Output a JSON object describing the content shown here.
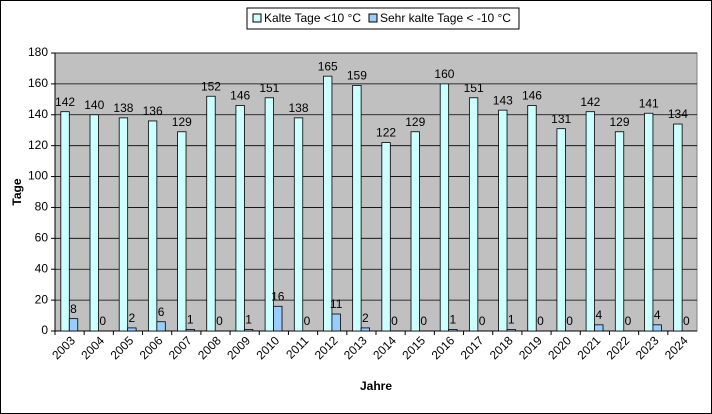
{
  "chart_data": {
    "type": "bar",
    "categories": [
      "2003",
      "2004",
      "2005",
      "2006",
      "2007",
      "2008",
      "2009",
      "2010",
      "2011",
      "2012",
      "2013",
      "2014",
      "2015",
      "2016",
      "2017",
      "2018",
      "2019",
      "2020",
      "2021",
      "2022",
      "2023",
      "2024"
    ],
    "series": [
      {
        "name": "Kalte Tage <10 °C",
        "color": "#ccffff",
        "values": [
          142,
          140,
          138,
          136,
          129,
          152,
          146,
          151,
          138,
          165,
          159,
          122,
          129,
          160,
          151,
          143,
          146,
          131,
          142,
          129,
          141,
          134
        ]
      },
      {
        "name": "Sehr kalte Tage < -10 °C",
        "color": "#99ccff",
        "values": [
          8,
          0,
          2,
          6,
          1,
          0,
          1,
          16,
          0,
          11,
          2,
          0,
          0,
          1,
          0,
          1,
          0,
          0,
          4,
          0,
          4,
          0
        ]
      }
    ],
    "ylabel": "Tage",
    "xlabel": "Jahre",
    "ylim": [
      0,
      180
    ],
    "yticks": [
      0,
      20,
      40,
      60,
      80,
      100,
      120,
      140,
      160,
      180
    ],
    "grid": true,
    "legend": "top"
  }
}
